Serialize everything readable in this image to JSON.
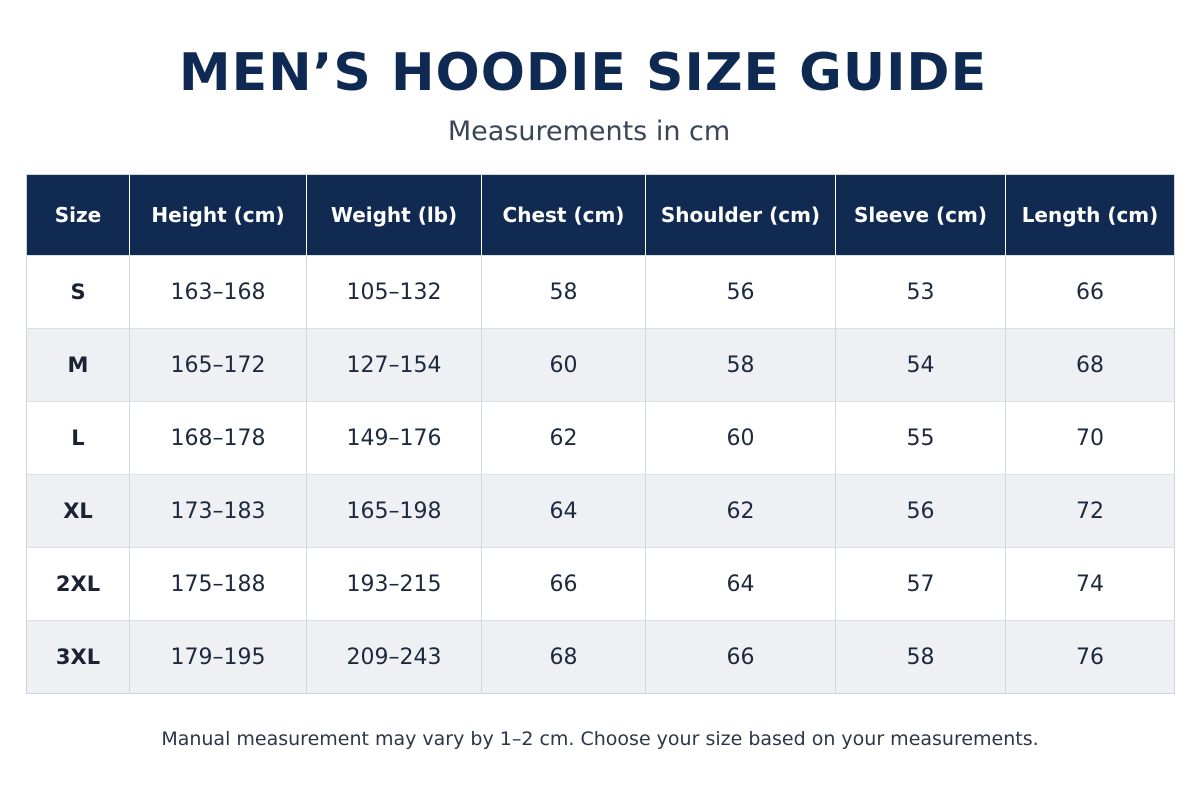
{
  "title": "MEN’S HOODIE SIZE GUIDE",
  "subtitle": "Measurements in cm",
  "table": {
    "headers": [
      "Size",
      "Height (cm)",
      "Weight (lb)",
      "Chest (cm)",
      "Shoulder (cm)",
      "Sleeve (cm)",
      "Length (cm)"
    ],
    "rows": [
      [
        "S",
        "163–168",
        "105–132",
        "58",
        "56",
        "53",
        "66"
      ],
      [
        "M",
        "165–172",
        "127–154",
        "60",
        "58",
        "54",
        "68"
      ],
      [
        "L",
        "168–178",
        "149–176",
        "62",
        "60",
        "55",
        "70"
      ],
      [
        "XL",
        "173–183",
        "165–198",
        "64",
        "62",
        "56",
        "72"
      ],
      [
        "2XL",
        "175–188",
        "193–215",
        "66",
        "64",
        "57",
        "74"
      ],
      [
        "3XL",
        "179–195",
        "209–243",
        "68",
        "66",
        "58",
        "76"
      ]
    ]
  },
  "footer_note": "Manual measurement may vary by 1–2 cm. Choose your size based on your measurements.",
  "colors": {
    "header_background": "#102a52",
    "title": "#0f2a52",
    "row_stripe": "#eef0f4"
  }
}
